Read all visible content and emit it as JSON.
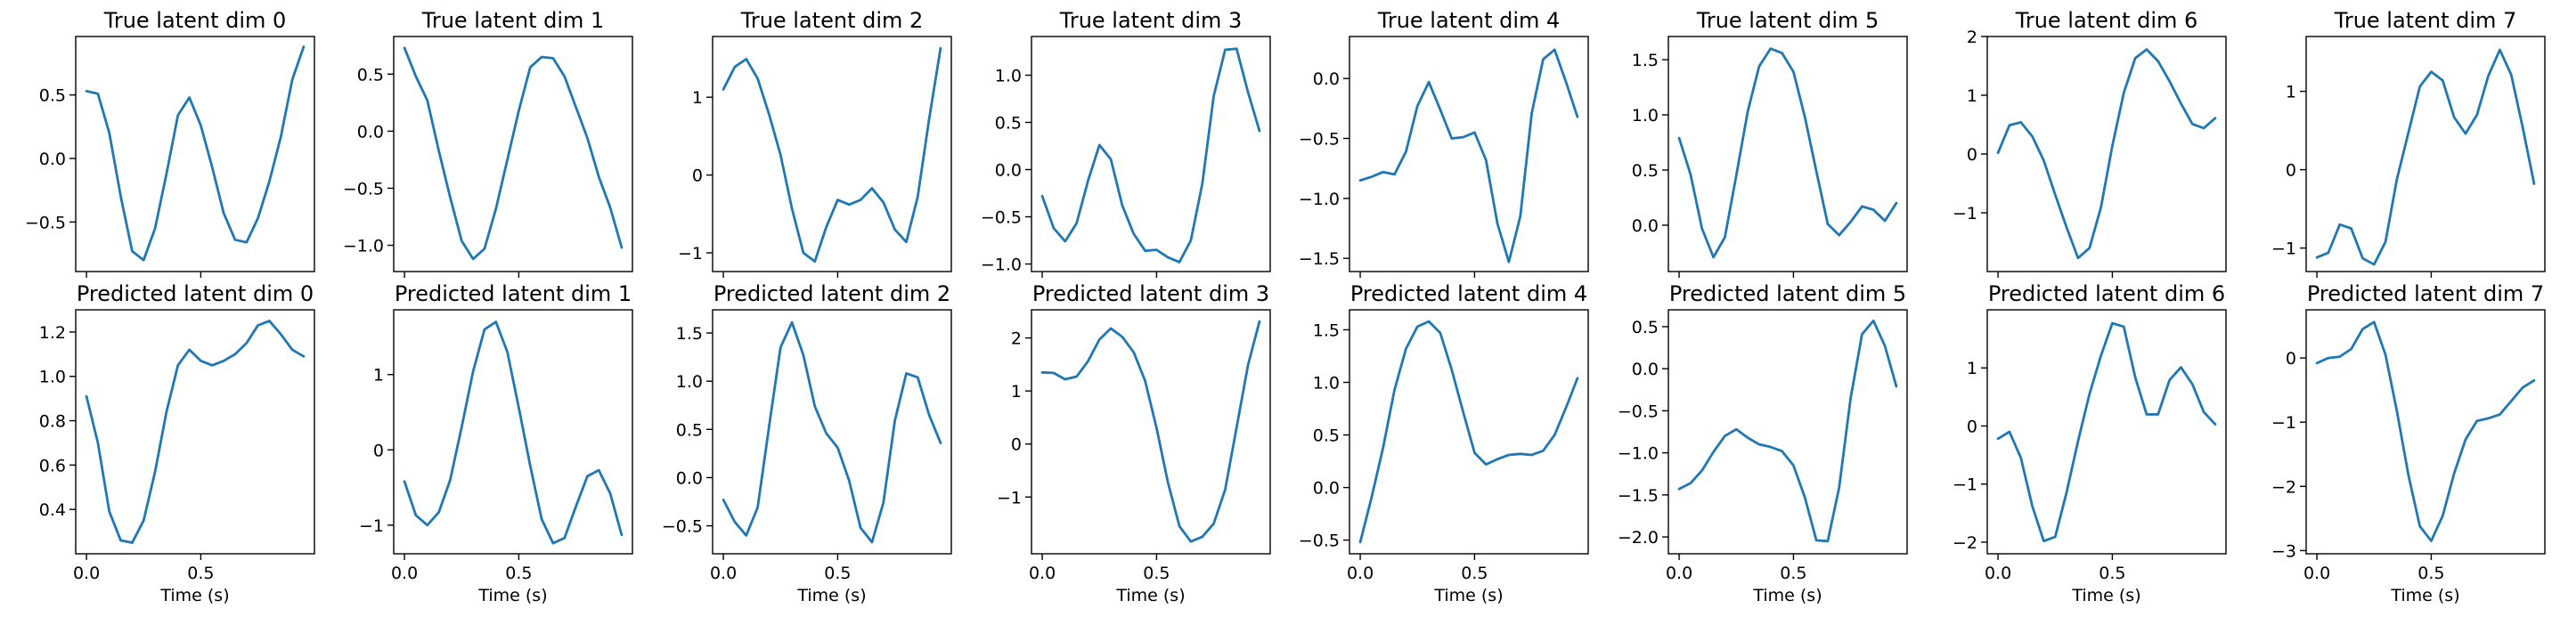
{
  "figure": {
    "xlabel": "Time (s)"
  },
  "chart_data": [
    {
      "type": "line",
      "title": "True latent dim 0",
      "xlim": [
        -0.047,
        0.997
      ],
      "ylim": [
        -0.89,
        0.96
      ],
      "xticks": [
        0,
        0.5
      ],
      "xtick_labels": [
        "0.0",
        "0.5"
      ],
      "yticks": [
        -0.5,
        0,
        0.5
      ],
      "ytick_labels": [
        "−0.5",
        "0.0",
        "0.5"
      ],
      "show_xlabel": false,
      "x": [
        0,
        0.05,
        0.1,
        0.15,
        0.2,
        0.25,
        0.3,
        0.35,
        0.4,
        0.45,
        0.5,
        0.55,
        0.6,
        0.65,
        0.7,
        0.75,
        0.8,
        0.85,
        0.9,
        0.95
      ],
      "y": [
        0.53,
        0.51,
        0.2,
        -0.3,
        -0.73,
        -0.8,
        -0.55,
        -0.12,
        0.34,
        0.48,
        0.26,
        -0.07,
        -0.43,
        -0.64,
        -0.66,
        -0.47,
        -0.18,
        0.17,
        0.62,
        0.88
      ]
    },
    {
      "type": "line",
      "title": "True latent dim 1",
      "xlim": [
        -0.047,
        0.997
      ],
      "ylim": [
        -1.23,
        0.83
      ],
      "xticks": [
        0,
        0.5
      ],
      "xtick_labels": [
        "0.0",
        "0.5"
      ],
      "yticks": [
        -1.0,
        -0.5,
        0,
        0.5
      ],
      "ytick_labels": [
        "−1.0",
        "−0.5",
        "0.0",
        "0.5"
      ],
      "show_xlabel": false,
      "x": [
        0,
        0.05,
        0.1,
        0.15,
        0.2,
        0.25,
        0.3,
        0.35,
        0.4,
        0.45,
        0.5,
        0.55,
        0.6,
        0.65,
        0.7,
        0.75,
        0.8,
        0.85,
        0.9,
        0.95
      ],
      "y": [
        0.73,
        0.48,
        0.27,
        -0.17,
        -0.58,
        -0.96,
        -1.12,
        -1.03,
        -0.68,
        -0.25,
        0.18,
        0.56,
        0.65,
        0.64,
        0.48,
        0.21,
        -0.06,
        -0.4,
        -0.67,
        -1.02
      ]
    },
    {
      "type": "line",
      "title": "True latent dim 2",
      "xlim": [
        -0.047,
        0.997
      ],
      "ylim": [
        -1.24,
        1.78
      ],
      "xticks": [
        0,
        0.5
      ],
      "xtick_labels": [
        "0.0",
        "0.5"
      ],
      "yticks": [
        -1,
        0,
        1
      ],
      "ytick_labels": [
        "−1",
        "0",
        "1"
      ],
      "show_xlabel": false,
      "x": [
        0,
        0.05,
        0.1,
        0.15,
        0.2,
        0.25,
        0.3,
        0.35,
        0.4,
        0.45,
        0.5,
        0.55,
        0.6,
        0.65,
        0.7,
        0.75,
        0.8,
        0.85,
        0.9,
        0.95
      ],
      "y": [
        1.1,
        1.39,
        1.49,
        1.24,
        0.78,
        0.26,
        -0.43,
        -1.0,
        -1.11,
        -0.67,
        -0.32,
        -0.38,
        -0.32,
        -0.17,
        -0.35,
        -0.7,
        -0.86,
        -0.28,
        0.72,
        1.63
      ]
    },
    {
      "type": "line",
      "title": "True latent dim 3",
      "xlim": [
        -0.047,
        0.997
      ],
      "ylim": [
        -1.08,
        1.41
      ],
      "xticks": [
        0,
        0.5
      ],
      "xtick_labels": [
        "0.0",
        "0.5"
      ],
      "yticks": [
        -1.0,
        -0.5,
        0,
        0.5,
        1.0
      ],
      "ytick_labels": [
        "−1.0",
        "−0.5",
        "0.0",
        "0.5",
        "1.0"
      ],
      "show_xlabel": false,
      "x": [
        0,
        0.05,
        0.1,
        0.15,
        0.2,
        0.25,
        0.3,
        0.35,
        0.4,
        0.45,
        0.5,
        0.55,
        0.6,
        0.65,
        0.7,
        0.75,
        0.8,
        0.85,
        0.9,
        0.95
      ],
      "y": [
        -0.28,
        -0.62,
        -0.76,
        -0.57,
        -0.12,
        0.26,
        0.11,
        -0.38,
        -0.68,
        -0.86,
        -0.85,
        -0.93,
        -0.98,
        -0.75,
        -0.15,
        0.78,
        1.27,
        1.28,
        0.82,
        0.41
      ]
    },
    {
      "type": "line",
      "title": "True latent dim 4",
      "xlim": [
        -0.047,
        0.997
      ],
      "ylim": [
        -1.61,
        0.35
      ],
      "xticks": [
        0,
        0.5
      ],
      "xtick_labels": [
        "0.0",
        "0.5"
      ],
      "yticks": [
        -1.5,
        -1.0,
        -0.5,
        0
      ],
      "ytick_labels": [
        "−1.5",
        "−1.0",
        "−0.5",
        "0.0"
      ],
      "show_xlabel": false,
      "x": [
        0,
        0.05,
        0.1,
        0.15,
        0.2,
        0.25,
        0.3,
        0.35,
        0.4,
        0.45,
        0.5,
        0.55,
        0.6,
        0.65,
        0.7,
        0.75,
        0.8,
        0.85,
        0.9,
        0.95
      ],
      "y": [
        -0.85,
        -0.82,
        -0.78,
        -0.8,
        -0.61,
        -0.23,
        -0.03,
        -0.26,
        -0.5,
        -0.49,
        -0.45,
        -0.68,
        -1.21,
        -1.53,
        -1.15,
        -0.29,
        0.16,
        0.24,
        -0.03,
        -0.32
      ]
    },
    {
      "type": "line",
      "title": "True latent dim 5",
      "xlim": [
        -0.047,
        0.997
      ],
      "ylim": [
        -0.42,
        1.71
      ],
      "xticks": [
        0,
        0.5
      ],
      "xtick_labels": [
        "0.0",
        "0.5"
      ],
      "yticks": [
        0,
        0.5,
        1.0,
        1.5
      ],
      "ytick_labels": [
        "0.0",
        "0.5",
        "1.0",
        "1.5"
      ],
      "show_xlabel": false,
      "x": [
        0,
        0.05,
        0.1,
        0.15,
        0.2,
        0.25,
        0.3,
        0.35,
        0.4,
        0.45,
        0.5,
        0.55,
        0.6,
        0.65,
        0.7,
        0.75,
        0.8,
        0.85,
        0.9,
        0.95
      ],
      "y": [
        0.79,
        0.46,
        -0.03,
        -0.29,
        -0.11,
        0.45,
        1.03,
        1.44,
        1.6,
        1.56,
        1.39,
        0.98,
        0.49,
        0.01,
        -0.09,
        0.03,
        0.17,
        0.14,
        0.04,
        0.2
      ]
    },
    {
      "type": "line",
      "title": "True latent dim 6",
      "xlim": [
        -0.047,
        0.997
      ],
      "ylim": [
        -2.0,
        2.0
      ],
      "xticks": [
        0,
        0.5
      ],
      "xtick_labels": [
        "0.0",
        "0.5"
      ],
      "yticks": [
        -1,
        0,
        1,
        2
      ],
      "ytick_labels": [
        "−1",
        "0",
        "1",
        "2"
      ],
      "show_xlabel": false,
      "x": [
        0,
        0.05,
        0.1,
        0.15,
        0.2,
        0.25,
        0.3,
        0.35,
        0.4,
        0.45,
        0.5,
        0.55,
        0.6,
        0.65,
        0.7,
        0.75,
        0.8,
        0.85,
        0.9,
        0.95
      ],
      "y": [
        0.02,
        0.49,
        0.54,
        0.3,
        -0.11,
        -0.69,
        -1.25,
        -1.77,
        -1.6,
        -0.91,
        0.14,
        1.04,
        1.63,
        1.78,
        1.58,
        1.24,
        0.86,
        0.51,
        0.44,
        0.61
      ]
    },
    {
      "type": "line",
      "title": "True latent dim 7",
      "xlim": [
        -0.047,
        0.997
      ],
      "ylim": [
        -1.3,
        1.7
      ],
      "xticks": [
        0,
        0.5
      ],
      "xtick_labels": [
        "0.0",
        "0.5"
      ],
      "yticks": [
        -1,
        0,
        1
      ],
      "ytick_labels": [
        "−1",
        "0",
        "1"
      ],
      "show_xlabel": false,
      "x": [
        0,
        0.05,
        0.1,
        0.15,
        0.2,
        0.25,
        0.3,
        0.35,
        0.4,
        0.45,
        0.5,
        0.55,
        0.6,
        0.65,
        0.7,
        0.75,
        0.8,
        0.85,
        0.9,
        0.95
      ],
      "y": [
        -1.12,
        -1.06,
        -0.7,
        -0.75,
        -1.13,
        -1.21,
        -0.92,
        -0.12,
        0.47,
        1.06,
        1.25,
        1.14,
        0.67,
        0.46,
        0.7,
        1.2,
        1.53,
        1.21,
        0.54,
        -0.18
      ]
    },
    {
      "type": "line",
      "title": "Predicted latent dim 0",
      "xlim": [
        -0.047,
        0.997
      ],
      "ylim": [
        0.2,
        1.3
      ],
      "xticks": [
        0,
        0.5
      ],
      "xtick_labels": [
        "0.0",
        "0.5"
      ],
      "yticks": [
        0.4,
        0.6,
        0.8,
        1.0,
        1.2
      ],
      "ytick_labels": [
        "0.4",
        "0.6",
        "0.8",
        "1.0",
        "1.2"
      ],
      "show_xlabel": true,
      "x": [
        0,
        0.05,
        0.1,
        0.15,
        0.2,
        0.25,
        0.3,
        0.35,
        0.4,
        0.45,
        0.5,
        0.55,
        0.6,
        0.65,
        0.7,
        0.75,
        0.8,
        0.85,
        0.9,
        0.95
      ],
      "y": [
        0.91,
        0.7,
        0.39,
        0.26,
        0.25,
        0.35,
        0.57,
        0.84,
        1.05,
        1.12,
        1.07,
        1.05,
        1.07,
        1.1,
        1.15,
        1.23,
        1.25,
        1.19,
        1.12,
        1.09
      ]
    },
    {
      "type": "line",
      "title": "Predicted latent dim 1",
      "xlim": [
        -0.047,
        0.997
      ],
      "ylim": [
        -1.38,
        1.86
      ],
      "xticks": [
        0,
        0.5
      ],
      "xtick_labels": [
        "0.0",
        "0.5"
      ],
      "yticks": [
        -1,
        0,
        1
      ],
      "ytick_labels": [
        "−1",
        "0",
        "1"
      ],
      "show_xlabel": true,
      "x": [
        0,
        0.05,
        0.1,
        0.15,
        0.2,
        0.25,
        0.3,
        0.35,
        0.4,
        0.45,
        0.5,
        0.55,
        0.6,
        0.65,
        0.7,
        0.75,
        0.8,
        0.85,
        0.9,
        0.95
      ],
      "y": [
        -0.42,
        -0.87,
        -1.0,
        -0.83,
        -0.4,
        0.3,
        1.04,
        1.6,
        1.7,
        1.3,
        0.56,
        -0.21,
        -0.92,
        -1.24,
        -1.17,
        -0.75,
        -0.35,
        -0.27,
        -0.58,
        -1.13
      ]
    },
    {
      "type": "line",
      "title": "Predicted latent dim 2",
      "xlim": [
        -0.047,
        0.997
      ],
      "ylim": [
        -0.79,
        1.74
      ],
      "xticks": [
        0,
        0.5
      ],
      "xtick_labels": [
        "0.0",
        "0.5"
      ],
      "yticks": [
        -0.5,
        0,
        0.5,
        1.0,
        1.5
      ],
      "ytick_labels": [
        "−0.5",
        "0.0",
        "0.5",
        "1.0",
        "1.5"
      ],
      "show_xlabel": true,
      "x": [
        0,
        0.05,
        0.1,
        0.15,
        0.2,
        0.25,
        0.3,
        0.35,
        0.4,
        0.45,
        0.5,
        0.55,
        0.6,
        0.65,
        0.7,
        0.75,
        0.8,
        0.85,
        0.9,
        0.95
      ],
      "y": [
        -0.23,
        -0.46,
        -0.6,
        -0.31,
        0.53,
        1.35,
        1.61,
        1.27,
        0.74,
        0.46,
        0.31,
        -0.03,
        -0.52,
        -0.67,
        -0.26,
        0.59,
        1.08,
        1.04,
        0.65,
        0.36
      ]
    },
    {
      "type": "line",
      "title": "Predicted latent dim 3",
      "xlim": [
        -0.047,
        0.997
      ],
      "ylim": [
        -2.07,
        2.53
      ],
      "xticks": [
        0,
        0.5
      ],
      "xtick_labels": [
        "0.0",
        "0.5"
      ],
      "yticks": [
        -1,
        0,
        1,
        2
      ],
      "ytick_labels": [
        "−1",
        "0",
        "1",
        "2"
      ],
      "show_xlabel": true,
      "x": [
        0,
        0.05,
        0.1,
        0.15,
        0.2,
        0.25,
        0.3,
        0.35,
        0.4,
        0.45,
        0.5,
        0.55,
        0.6,
        0.65,
        0.7,
        0.75,
        0.8,
        0.85,
        0.9,
        0.95
      ],
      "y": [
        1.35,
        1.34,
        1.22,
        1.27,
        1.56,
        1.97,
        2.18,
        2.02,
        1.73,
        1.19,
        0.3,
        -0.73,
        -1.55,
        -1.84,
        -1.75,
        -1.5,
        -0.86,
        0.31,
        1.49,
        2.31
      ]
    },
    {
      "type": "line",
      "title": "Predicted latent dim 4",
      "xlim": [
        -0.047,
        0.997
      ],
      "ylim": [
        -0.63,
        1.69
      ],
      "xticks": [
        0,
        0.5
      ],
      "xtick_labels": [
        "0.0",
        "0.5"
      ],
      "yticks": [
        -0.5,
        0,
        0.5,
        1.0,
        1.5
      ],
      "ytick_labels": [
        "−0.5",
        "0.0",
        "0.5",
        "1.0",
        "1.5"
      ],
      "show_xlabel": true,
      "x": [
        0,
        0.05,
        0.1,
        0.15,
        0.2,
        0.25,
        0.3,
        0.35,
        0.4,
        0.45,
        0.5,
        0.55,
        0.6,
        0.65,
        0.7,
        0.75,
        0.8,
        0.85,
        0.9,
        0.95
      ],
      "y": [
        -0.52,
        -0.09,
        0.38,
        0.93,
        1.32,
        1.53,
        1.58,
        1.47,
        1.12,
        0.72,
        0.33,
        0.22,
        0.27,
        0.31,
        0.32,
        0.31,
        0.35,
        0.5,
        0.76,
        1.04
      ]
    },
    {
      "type": "line",
      "title": "Predicted latent dim 5",
      "xlim": [
        -0.047,
        0.997
      ],
      "ylim": [
        -2.2,
        0.7
      ],
      "xticks": [
        0,
        0.5
      ],
      "xtick_labels": [
        "0.0",
        "0.5"
      ],
      "yticks": [
        -2.0,
        -1.5,
        -1.0,
        -0.5,
        0,
        0.5
      ],
      "ytick_labels": [
        "−2.0",
        "−1.5",
        "−1.0",
        "−0.5",
        "0.0",
        "0.5"
      ],
      "show_xlabel": true,
      "x": [
        0,
        0.05,
        0.1,
        0.15,
        0.2,
        0.25,
        0.3,
        0.35,
        0.4,
        0.45,
        0.5,
        0.55,
        0.6,
        0.65,
        0.7,
        0.75,
        0.8,
        0.85,
        0.9,
        0.95
      ],
      "y": [
        -1.43,
        -1.36,
        -1.21,
        -0.99,
        -0.8,
        -0.72,
        -0.82,
        -0.9,
        -0.93,
        -0.98,
        -1.15,
        -1.53,
        -2.04,
        -2.05,
        -1.41,
        -0.35,
        0.41,
        0.57,
        0.27,
        -0.21
      ]
    },
    {
      "type": "line",
      "title": "Predicted latent dim 6",
      "xlim": [
        -0.047,
        0.997
      ],
      "ylim": [
        -2.2,
        2.0
      ],
      "xticks": [
        0,
        0.5
      ],
      "xtick_labels": [
        "0.0",
        "0.5"
      ],
      "yticks": [
        -2,
        -1,
        0,
        1
      ],
      "ytick_labels": [
        "−2",
        "−1",
        "0",
        "1"
      ],
      "show_xlabel": true,
      "x": [
        0,
        0.05,
        0.1,
        0.15,
        0.2,
        0.25,
        0.3,
        0.35,
        0.4,
        0.45,
        0.5,
        0.55,
        0.6,
        0.65,
        0.7,
        0.75,
        0.8,
        0.85,
        0.9,
        0.95
      ],
      "y": [
        -0.22,
        -0.1,
        -0.55,
        -1.38,
        -1.98,
        -1.91,
        -1.14,
        -0.26,
        0.55,
        1.21,
        1.77,
        1.71,
        0.84,
        0.2,
        0.2,
        0.79,
        1.01,
        0.72,
        0.24,
        0.03
      ]
    },
    {
      "type": "line",
      "title": "Predicted latent dim 7",
      "xlim": [
        -0.047,
        0.997
      ],
      "ylim": [
        -3.05,
        0.75
      ],
      "xticks": [
        0,
        0.5
      ],
      "xtick_labels": [
        "0.0",
        "0.5"
      ],
      "yticks": [
        -3,
        -2,
        -1,
        0
      ],
      "ytick_labels": [
        "−3",
        "−2",
        "−1",
        "0"
      ],
      "show_xlabel": true,
      "x": [
        0,
        0.05,
        0.1,
        0.15,
        0.2,
        0.25,
        0.3,
        0.35,
        0.4,
        0.45,
        0.5,
        0.55,
        0.6,
        0.65,
        0.7,
        0.75,
        0.8,
        0.85,
        0.9,
        0.95
      ],
      "y": [
        -0.08,
        0.0,
        0.02,
        0.14,
        0.45,
        0.56,
        0.05,
        -0.83,
        -1.82,
        -2.62,
        -2.85,
        -2.46,
        -1.8,
        -1.27,
        -0.98,
        -0.94,
        -0.88,
        -0.67,
        -0.46,
        -0.35
      ]
    }
  ]
}
